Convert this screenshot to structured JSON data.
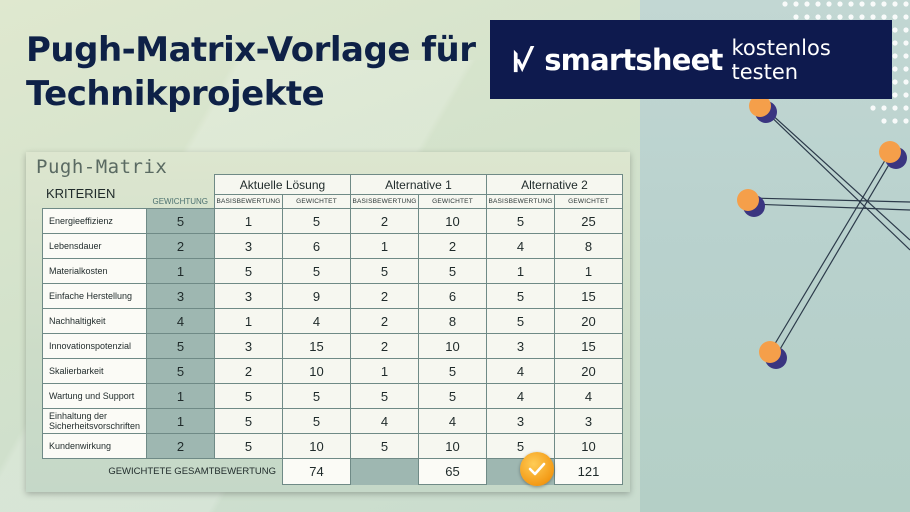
{
  "title": "Pugh-Matrix-Vorlage für Technikprojekte",
  "banner": {
    "brand": "smartsheet",
    "cta": "kostenlos testen"
  },
  "matrix": {
    "title": "Pugh-Matrix",
    "criteria_header": "KRITERIEN",
    "weight_header": "GEWICHTUNG",
    "groups": [
      "Aktuelle Lösung",
      "Alternative 1",
      "Alternative 2"
    ],
    "sub_base": "BASISBEWERTUNG",
    "sub_weighted": "GEWICHTET",
    "rows": [
      {
        "name": "Energieeffizienz",
        "weight": "5",
        "vals": [
          "1",
          "5",
          "2",
          "10",
          "5",
          "25"
        ]
      },
      {
        "name": "Lebensdauer",
        "weight": "2",
        "vals": [
          "3",
          "6",
          "1",
          "2",
          "4",
          "8"
        ]
      },
      {
        "name": "Materialkosten",
        "weight": "1",
        "vals": [
          "5",
          "5",
          "5",
          "5",
          "1",
          "1"
        ]
      },
      {
        "name": "Einfache Herstellung",
        "weight": "3",
        "vals": [
          "3",
          "9",
          "2",
          "6",
          "5",
          "15"
        ]
      },
      {
        "name": "Nachhaltigkeit",
        "weight": "4",
        "vals": [
          "1",
          "4",
          "2",
          "8",
          "5",
          "20"
        ]
      },
      {
        "name": "Innovationspotenzial",
        "weight": "5",
        "vals": [
          "3",
          "15",
          "2",
          "10",
          "3",
          "15"
        ]
      },
      {
        "name": "Skalierbarkeit",
        "weight": "5",
        "vals": [
          "2",
          "10",
          "1",
          "5",
          "4",
          "20"
        ]
      },
      {
        "name": "Wartung und Support",
        "weight": "1",
        "vals": [
          "5",
          "5",
          "5",
          "5",
          "4",
          "4"
        ]
      },
      {
        "name": "Einhaltung der Sicherheitsvorschriften",
        "weight": "1",
        "vals": [
          "5",
          "5",
          "4",
          "4",
          "3",
          "3"
        ]
      },
      {
        "name": "Kundenwirkung",
        "weight": "2",
        "vals": [
          "5",
          "10",
          "5",
          "10",
          "5",
          "10"
        ]
      }
    ],
    "total_label": "GEWICHTETE GESAMTBEWERTUNG",
    "totals": [
      "74",
      "65",
      "121"
    ]
  },
  "colors": {
    "navy": "#0e1a4e",
    "title": "#0e2147",
    "weight_fill": "#9eb7b1",
    "check": "#f39a16"
  },
  "icons": {
    "logo": "smartsheet-check-icon",
    "winner": "checkmark-icon"
  }
}
